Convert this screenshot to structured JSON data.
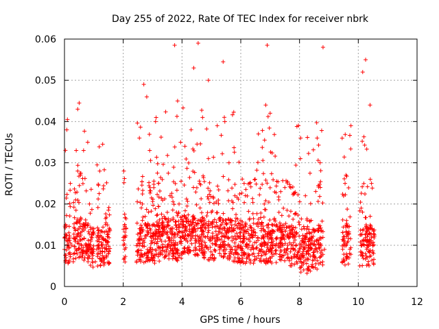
{
  "chart_data": {
    "type": "scatter",
    "title": "Day 255 of 2022, Rate Of TEC Index for receiver nbrk",
    "xlabel": "GPS time / hours",
    "ylabel": "ROTI / TECUs",
    "xlim": [
      0,
      12
    ],
    "ylim": [
      0,
      0.06
    ],
    "x_ticks": [
      0,
      2,
      4,
      6,
      8,
      10,
      12
    ],
    "y_ticks": [
      0,
      0.01,
      0.02,
      0.03,
      0.04,
      0.05,
      0.06
    ],
    "x_tick_labels": [
      "0",
      "2",
      "4",
      "6",
      "8",
      "10",
      "12"
    ],
    "y_tick_labels": [
      "0",
      "0.01",
      "0.02",
      "0.03",
      "0.04",
      "0.05",
      "0.06"
    ],
    "grid": true,
    "marker": "+",
    "color": "#ff0000",
    "series": [
      {
        "name": "ROTI",
        "x": [
          0.0,
          0.02,
          0.04,
          0.08,
          0.1,
          0.12,
          0.15,
          0.2,
          0.25,
          0.3,
          0.35,
          0.38,
          0.4,
          0.42,
          0.45,
          0.48,
          0.5,
          0.52,
          0.55,
          0.58,
          0.6,
          0.65,
          0.7,
          0.75,
          0.8,
          0.85,
          0.9,
          0.95,
          1.0,
          1.05,
          1.1,
          1.15,
          1.2,
          1.25,
          1.3,
          1.35,
          1.4,
          1.45,
          1.5,
          2.02,
          2.05,
          2.1,
          2.5,
          2.55,
          2.6,
          2.65,
          2.7,
          2.75,
          2.8,
          2.85,
          2.9,
          2.95,
          3.0,
          3.1,
          3.2,
          3.3,
          3.4,
          3.5,
          3.6,
          3.7,
          3.75,
          3.8,
          3.85,
          3.9,
          4.0,
          4.1,
          4.2,
          4.3,
          4.4,
          4.5,
          4.55,
          4.6,
          4.7,
          4.8,
          4.9,
          5.0,
          5.1,
          5.2,
          5.3,
          5.4,
          5.5,
          5.6,
          5.7,
          5.8,
          5.9,
          6.0,
          6.1,
          6.2,
          6.3,
          6.4,
          6.5,
          6.6,
          6.7,
          6.8,
          6.85,
          6.9,
          6.95,
          7.0,
          7.1,
          7.2,
          7.3,
          7.4,
          7.5,
          7.6,
          7.7,
          7.8,
          7.9,
          8.0,
          8.1,
          8.2,
          8.3,
          8.4,
          8.5,
          8.6,
          8.7,
          8.8,
          8.85,
          9.5,
          9.55,
          9.6,
          9.7,
          9.75,
          10.1,
          10.15,
          10.2,
          10.25,
          10.3,
          10.35,
          10.4,
          10.45,
          10.5,
          10.52
        ],
        "y": [
          0.009,
          0.012,
          0.015,
          0.038,
          0.0405,
          0.011,
          0.008,
          0.025,
          0.01,
          0.006,
          0.014,
          0.021,
          0.033,
          0.012,
          0.043,
          0.009,
          0.0445,
          0.016,
          0.027,
          0.01,
          0.007,
          0.033,
          0.015,
          0.009,
          0.006,
          0.02,
          0.011,
          0.008,
          0.014,
          0.006,
          0.009,
          0.012,
          0.028,
          0.01,
          0.0345,
          0.007,
          0.015,
          0.011,
          0.008,
          0.028,
          0.009,
          0.014,
          0.01,
          0.036,
          0.013,
          0.02,
          0.049,
          0.008,
          0.046,
          0.015,
          0.033,
          0.012,
          0.009,
          0.04,
          0.025,
          0.011,
          0.007,
          0.018,
          0.014,
          0.01,
          0.0585,
          0.008,
          0.045,
          0.02,
          0.012,
          0.034,
          0.009,
          0.015,
          0.053,
          0.011,
          0.059,
          0.025,
          0.041,
          0.01,
          0.05,
          0.018,
          0.007,
          0.039,
          0.014,
          0.0545,
          0.009,
          0.03,
          0.012,
          0.022,
          0.008,
          0.016,
          0.011,
          0.006,
          0.025,
          0.01,
          0.013,
          0.037,
          0.009,
          0.02,
          0.044,
          0.0585,
          0.015,
          0.042,
          0.011,
          0.008,
          0.018,
          0.007,
          0.024,
          0.01,
          0.013,
          0.009,
          0.006,
          0.015,
          0.011,
          0.022,
          0.008,
          0.012,
          0.007,
          0.036,
          0.03,
          0.058,
          0.009,
          0.012,
          0.025,
          0.016,
          0.008,
          0.039,
          0.019,
          0.052,
          0.01,
          0.055,
          0.007,
          0.014,
          0.044,
          0.025,
          0.01,
          0.008
        ],
        "x_dense": [
          0.2,
          0.5,
          0.7,
          1.0,
          1.3,
          2.6,
          3.0,
          3.4,
          3.8,
          4.2,
          4.6,
          5.0,
          5.4,
          5.8,
          6.2,
          6.6,
          7.0,
          7.4,
          7.8,
          8.2,
          8.6
        ],
        "y_dense_center": [
          0.01,
          0.012,
          0.011,
          0.009,
          0.01,
          0.011,
          0.01,
          0.012,
          0.011,
          0.013,
          0.012,
          0.011,
          0.012,
          0.011,
          0.01,
          0.011,
          0.01,
          0.011,
          0.009,
          0.008,
          0.009
        ]
      }
    ]
  }
}
